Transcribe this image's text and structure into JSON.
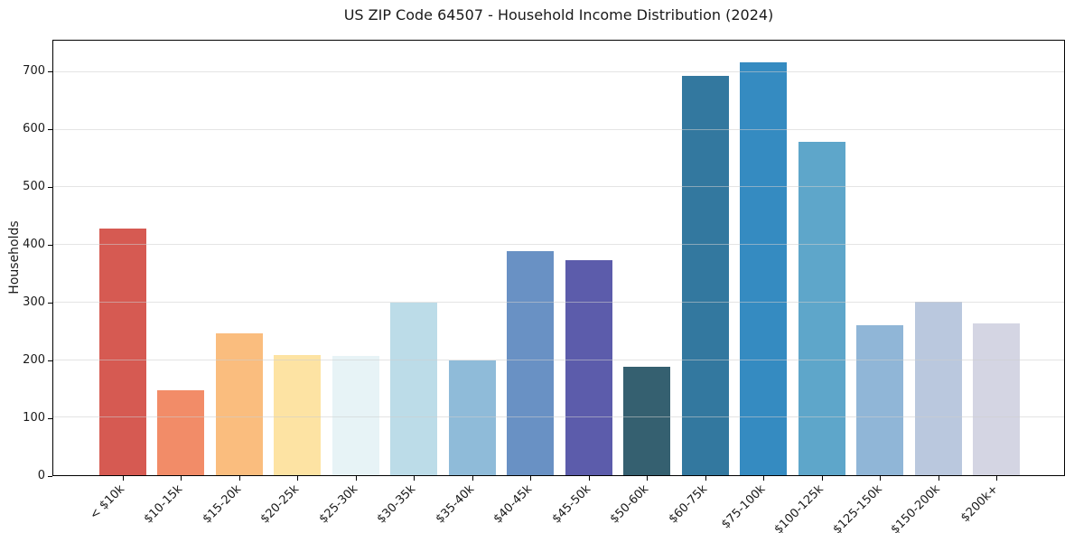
{
  "chart_data": {
    "type": "bar",
    "title": "US ZIP Code 64507 - Household Income Distribution (2024)",
    "xlabel": "",
    "ylabel": "Households",
    "categories": [
      "< $10k",
      "$10-15k",
      "$15-20k",
      "$20-25k",
      "$25-30k",
      "$30-35k",
      "$35-40k",
      "$40-45k",
      "$45-50k",
      "$50-60k",
      "$60-75k",
      "$75-100k",
      "$100-125k",
      "$125-150k",
      "$150-200k",
      "$200k+"
    ],
    "values": [
      428,
      147,
      247,
      209,
      207,
      300,
      199,
      390,
      373,
      188,
      694,
      717,
      580,
      261,
      302,
      264
    ],
    "bar_colors": [
      "#d65a52",
      "#f28c68",
      "#fabd7e",
      "#fde3a3",
      "#e7f3f6",
      "#bcdce8",
      "#8fbbd9",
      "#6991c4",
      "#5c5cab",
      "#356070",
      "#33789f",
      "#358bc1",
      "#5ea6ca",
      "#90b6d7",
      "#bac8de",
      "#d4d5e3"
    ],
    "yticks": [
      0,
      100,
      200,
      300,
      400,
      500,
      600,
      700
    ],
    "ylim": [
      0,
      755
    ],
    "grid": true,
    "legend": false,
    "background_color": "#ffffff",
    "text_color": "#1a1a1a"
  }
}
